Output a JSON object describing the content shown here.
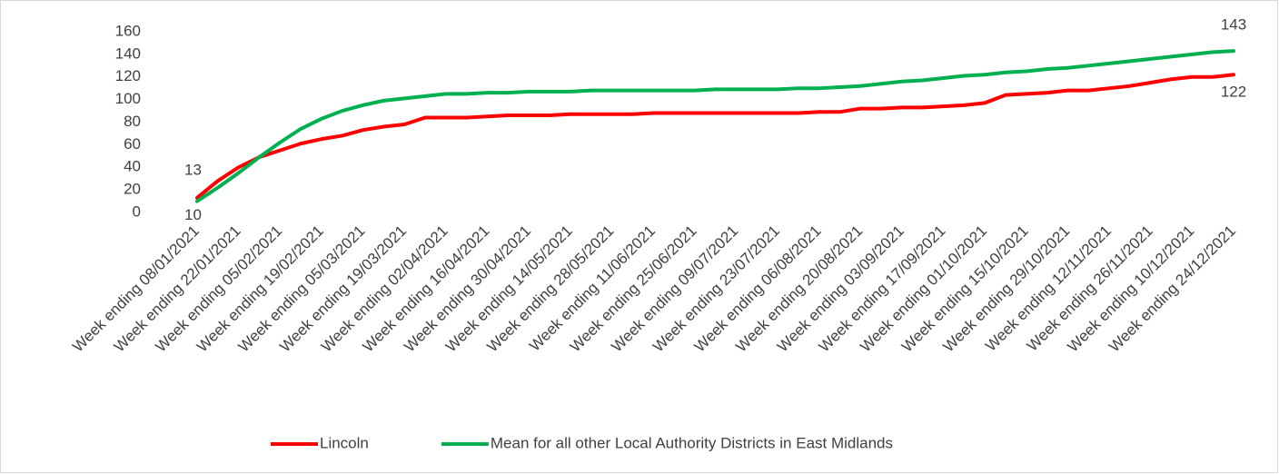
{
  "chart_data": {
    "type": "line",
    "categories": [
      "Week ending 08/01/2021",
      null,
      "Week ending 22/01/2021",
      null,
      "Week ending 05/02/2021",
      null,
      "Week ending 19/02/2021",
      null,
      "Week ending 05/03/2021",
      null,
      "Week ending 19/03/2021",
      null,
      "Week ending 02/04/2021",
      null,
      "Week ending 16/04/2021",
      null,
      "Week ending 30/04/2021",
      null,
      "Week ending 14/05/2021",
      null,
      "Week ending 28/05/2021",
      null,
      "Week ending 11/06/2021",
      null,
      "Week ending 25/06/2021",
      null,
      "Week ending 09/07/2021",
      null,
      "Week ending 23/07/2021",
      null,
      "Week ending 06/08/2021",
      null,
      "Week ending 20/08/2021",
      null,
      "Week ending 03/09/2021",
      null,
      "Week ending 17/09/2021",
      null,
      "Week ending 01/10/2021",
      null,
      "Week ending 15/10/2021",
      null,
      "Week ending 29/10/2021",
      null,
      "Week ending 12/11/2021",
      null,
      "Week ending 26/11/2021",
      null,
      "Week ending 10/12/2021",
      null,
      "Week ending 24/12/2021"
    ],
    "series": [
      {
        "name": "Lincoln",
        "color": "#ff0000",
        "values": [
          13,
          28,
          40,
          49,
          55,
          61,
          65,
          68,
          73,
          76,
          78,
          84,
          84,
          84,
          85,
          86,
          86,
          86,
          87,
          87,
          87,
          87,
          88,
          88,
          88,
          88,
          88,
          88,
          88,
          88,
          89,
          89,
          92,
          92,
          93,
          93,
          94,
          95,
          97,
          104,
          105,
          106,
          108,
          108,
          110,
          112,
          115,
          118,
          120,
          120,
          122
        ]
      },
      {
        "name": "Mean for all other Local Authority Districts in East Midlands",
        "color": "#00b050",
        "values": [
          10,
          22,
          35,
          49,
          62,
          74,
          83,
          90,
          95,
          99,
          101,
          103,
          105,
          105,
          106,
          106,
          107,
          107,
          107,
          108,
          108,
          108,
          108,
          108,
          108,
          109,
          109,
          109,
          109,
          110,
          110,
          111,
          112,
          114,
          116,
          117,
          119,
          121,
          122,
          124,
          125,
          127,
          128,
          130,
          132,
          134,
          136,
          138,
          140,
          142,
          143
        ]
      }
    ],
    "ylim": [
      0,
      160
    ],
    "yticks": [
      0,
      20,
      40,
      60,
      80,
      100,
      120,
      140,
      160
    ],
    "grid": false,
    "legend": "bottom"
  }
}
